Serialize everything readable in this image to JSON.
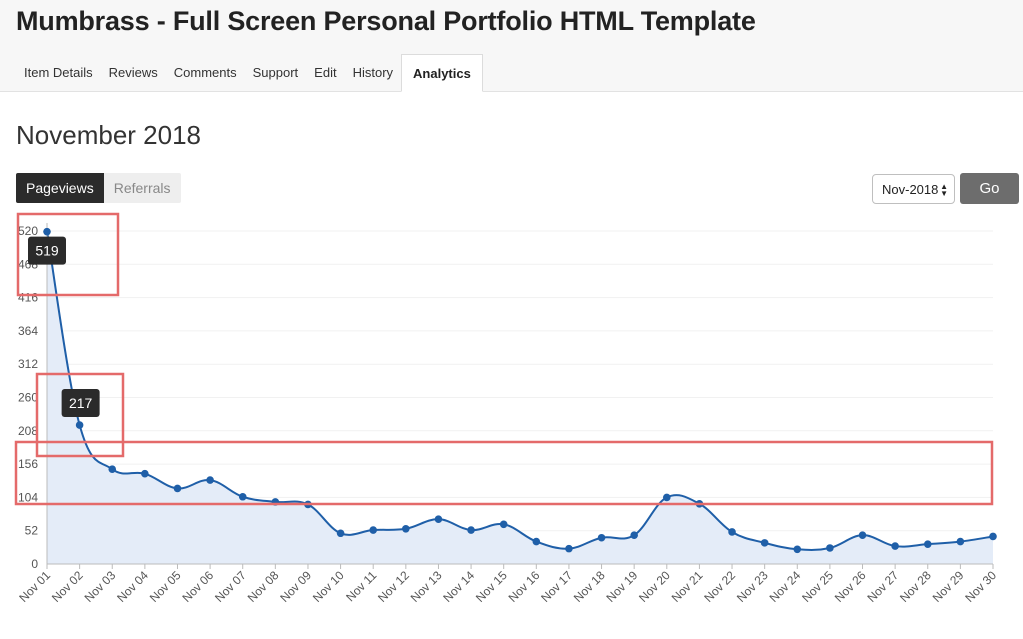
{
  "header": {
    "title": "Mumbrass - Full Screen Personal Portfolio HTML Template",
    "tabs": [
      {
        "label": "Item Details"
      },
      {
        "label": "Reviews"
      },
      {
        "label": "Comments"
      },
      {
        "label": "Support"
      },
      {
        "label": "Edit"
      },
      {
        "label": "History"
      },
      {
        "label": "Analytics"
      }
    ]
  },
  "main": {
    "month_title": "November 2018",
    "toggle": {
      "pageviews": "Pageviews",
      "referrals": "Referrals"
    },
    "month_select": "Nov-2018",
    "go_label": "Go"
  },
  "colors": {
    "line": "#1f5fa8",
    "fill": "#e4ecf8",
    "tooltip_bg": "#2b2b2b",
    "highlight": "#e46a6a"
  },
  "chart_data": {
    "type": "area",
    "x": [
      "Nov 01",
      "Nov 02",
      "Nov 03",
      "Nov 04",
      "Nov 05",
      "Nov 06",
      "Nov 07",
      "Nov 08",
      "Nov 09",
      "Nov 10",
      "Nov 11",
      "Nov 12",
      "Nov 13",
      "Nov 14",
      "Nov 15",
      "Nov 16",
      "Nov 17",
      "Nov 18",
      "Nov 19",
      "Nov 20",
      "Nov 21",
      "Nov 22",
      "Nov 23",
      "Nov 24",
      "Nov 25",
      "Nov 26",
      "Nov 27",
      "Nov 28",
      "Nov 29",
      "Nov 30"
    ],
    "values": [
      519,
      217,
      148,
      141,
      118,
      131,
      105,
      97,
      93,
      48,
      53,
      55,
      70,
      53,
      62,
      35,
      24,
      41,
      45,
      104,
      94,
      50,
      33,
      23,
      25,
      45,
      28,
      31,
      35,
      43
    ],
    "yticks": [
      0,
      52,
      104,
      156,
      208,
      260,
      312,
      364,
      416,
      468,
      520
    ],
    "ylim": [
      0,
      520
    ],
    "tooltips": [
      {
        "index": 0,
        "label": "519"
      },
      {
        "index": 1,
        "label": "217"
      }
    ]
  }
}
